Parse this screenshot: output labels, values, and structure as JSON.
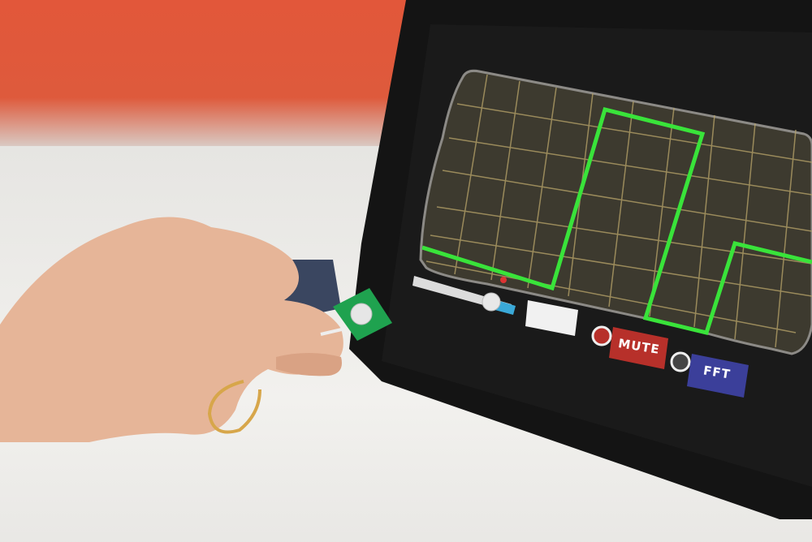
{
  "scene": {
    "description_icons": [
      "hand-icon",
      "pressure-sensor-icon",
      "oscilloscope-display"
    ]
  },
  "oscilloscope": {
    "trace_color": "#39e33a",
    "grid_color": "#b9a56a",
    "screen_color": "#3c3a30",
    "buttons": {
      "mute_label": "MUTE",
      "fft_label": "FFT"
    },
    "slider_value": 0.8,
    "colors": {
      "mute_button": "#b7302a",
      "fft_button": "#3b3f9a",
      "slider_knob": "#e8e8e8"
    }
  }
}
